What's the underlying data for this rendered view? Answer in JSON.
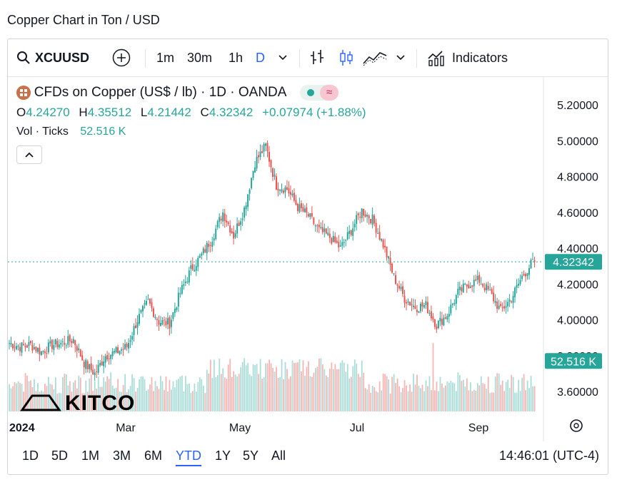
{
  "page_title": "Copper Chart in Ton / USD",
  "toolbar": {
    "symbol": "XCUUSD",
    "intervals": [
      "1m",
      "30m",
      "1h",
      "D"
    ],
    "active_interval": "D",
    "indicators_label": "Indicators",
    "icons": [
      "search-icon",
      "add-compare-icon",
      "chevron-down-icon",
      "bar-style-icon",
      "candle-style-icon",
      "area-style-icon",
      "chevron-down-icon",
      "indicators-icon"
    ]
  },
  "legend": {
    "title": "CFDs on Copper (US$ / lb) · 1D · OANDA",
    "open_label": "O",
    "open": "4.24270",
    "high_label": "H",
    "high": "4.35512",
    "low_label": "L",
    "low": "4.21442",
    "close_label": "C",
    "close": "4.32342",
    "change": "+0.07974 (+1.88%)",
    "volume_label": "Vol · Ticks",
    "volume": "52.516 K"
  },
  "price_scale_labels": [
    "5.20000",
    "5.00000",
    "4.80000",
    "4.60000",
    "4.40000",
    "4.20000",
    "4.00000",
    "3.80000",
    "3.60000"
  ],
  "last_price_tag": "4.32342",
  "last_volume_tag": "52.516 K",
  "time_axis_labels": [
    "2024",
    "Mar",
    "May",
    "Jul",
    "Sep"
  ],
  "range_buttons": [
    "1D",
    "5D",
    "1M",
    "3M",
    "6M",
    "YTD",
    "1Y",
    "5Y",
    "All"
  ],
  "active_range": "YTD",
  "clock": "14:46:01 (UTC-4)",
  "watermark": "KITCO",
  "colors": {
    "up": "#26a69a",
    "down": "#ef5350",
    "up_vol": "#a8dcd6",
    "down_vol": "#f6b3b1",
    "accent": "#2962ff"
  },
  "chart_data": {
    "type": "candlestick",
    "title": "CFDs on Copper (US$ / lb) · 1D · OANDA",
    "ylim": [
      3.52,
      5.28
    ],
    "x_ticks": [
      "2024",
      "Mar",
      "May",
      "Jul",
      "Sep"
    ],
    "x": [
      "2024-01",
      "2024-02",
      "2024-03",
      "2024-04",
      "2024-05",
      "2024-06",
      "2024-07",
      "2024-08",
      "2024-09"
    ],
    "anchors_close": [
      [
        0,
        3.87
      ],
      [
        6,
        3.85
      ],
      [
        12,
        3.86
      ],
      [
        18,
        3.82
      ],
      [
        24,
        3.86
      ],
      [
        30,
        3.87
      ],
      [
        36,
        3.89
      ],
      [
        42,
        3.76
      ],
      [
        48,
        3.7
      ],
      [
        54,
        3.8
      ],
      [
        60,
        3.82
      ],
      [
        66,
        3.85
      ],
      [
        72,
        4.0
      ],
      [
        78,
        4.1
      ],
      [
        84,
        3.99
      ],
      [
        90,
        3.98
      ],
      [
        96,
        4.15
      ],
      [
        102,
        4.28
      ],
      [
        108,
        4.36
      ],
      [
        114,
        4.46
      ],
      [
        120,
        4.6
      ],
      [
        126,
        4.47
      ],
      [
        132,
        4.62
      ],
      [
        138,
        4.88
      ],
      [
        144,
        4.97
      ],
      [
        150,
        4.75
      ],
      [
        156,
        4.73
      ],
      [
        162,
        4.63
      ],
      [
        168,
        4.58
      ],
      [
        174,
        4.5
      ],
      [
        180,
        4.46
      ],
      [
        186,
        4.4
      ],
      [
        192,
        4.5
      ],
      [
        198,
        4.61
      ],
      [
        204,
        4.56
      ],
      [
        210,
        4.42
      ],
      [
        216,
        4.24
      ],
      [
        222,
        4.12
      ],
      [
        228,
        4.07
      ],
      [
        234,
        4.08
      ],
      [
        240,
        3.97
      ],
      [
        246,
        4.03
      ],
      [
        252,
        4.15
      ],
      [
        258,
        4.2
      ],
      [
        264,
        4.22
      ],
      [
        270,
        4.15
      ],
      [
        276,
        4.05
      ],
      [
        282,
        4.12
      ],
      [
        288,
        4.24
      ],
      [
        294,
        4.32342
      ]
    ],
    "total_sessions": 296,
    "last": {
      "open": 4.2427,
      "high": 4.35512,
      "low": 4.21442,
      "close": 4.32342,
      "volume": "52.516 K"
    }
  }
}
